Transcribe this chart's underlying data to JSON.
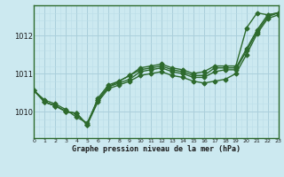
{
  "title": "Graphe pression niveau de la mer (hPa)",
  "xlim": [
    0,
    23
  ],
  "ylim": [
    1009.3,
    1012.8
  ],
  "yticks": [
    1010,
    1011,
    1012
  ],
  "xticks": [
    0,
    1,
    2,
    3,
    4,
    5,
    6,
    7,
    8,
    9,
    10,
    11,
    12,
    13,
    14,
    15,
    16,
    17,
    18,
    19,
    20,
    21,
    22,
    23
  ],
  "bg_color": "#cce9f0",
  "grid_color_major": "#aacfdb",
  "grid_color_minor": "#bbdde8",
  "line_color": "#2d6a2d",
  "marker": "D",
  "markersize": 2.5,
  "linewidth": 1.0,
  "series": [
    [
      1010.55,
      1010.25,
      1010.15,
      1010.0,
      1009.95,
      1009.65,
      1010.35,
      1010.7,
      1010.8,
      1010.95,
      1011.1,
      1011.15,
      1011.2,
      1011.1,
      1011.05,
      1010.95,
      1010.95,
      1011.15,
      1011.15,
      1011.15,
      1011.65,
      1012.15,
      1012.55,
      1012.6
    ],
    [
      1010.55,
      1010.25,
      1010.15,
      1010.0,
      1009.95,
      1009.65,
      1010.3,
      1010.65,
      1010.75,
      1010.85,
      1011.05,
      1011.1,
      1011.15,
      1011.05,
      1011.0,
      1010.9,
      1010.9,
      1011.05,
      1011.1,
      1011.1,
      1011.6,
      1012.1,
      1012.5,
      1012.6
    ],
    [
      1010.55,
      1010.25,
      1010.15,
      1010.0,
      1009.95,
      1009.65,
      1010.25,
      1010.6,
      1010.7,
      1010.8,
      1010.95,
      1011.0,
      1011.05,
      1010.95,
      1010.9,
      1010.8,
      1010.75,
      1010.8,
      1010.85,
      1011.0,
      1011.5,
      1012.05,
      1012.45,
      1012.55
    ],
    [
      1010.55,
      1010.3,
      1010.2,
      1010.05,
      1009.85,
      1009.7,
      1010.3,
      1010.65,
      1010.8,
      1010.95,
      1011.15,
      1011.2,
      1011.25,
      1011.15,
      1011.1,
      1011.0,
      1011.05,
      1011.2,
      1011.2,
      1011.2,
      1012.2,
      1012.6,
      1012.55,
      1012.6
    ]
  ]
}
